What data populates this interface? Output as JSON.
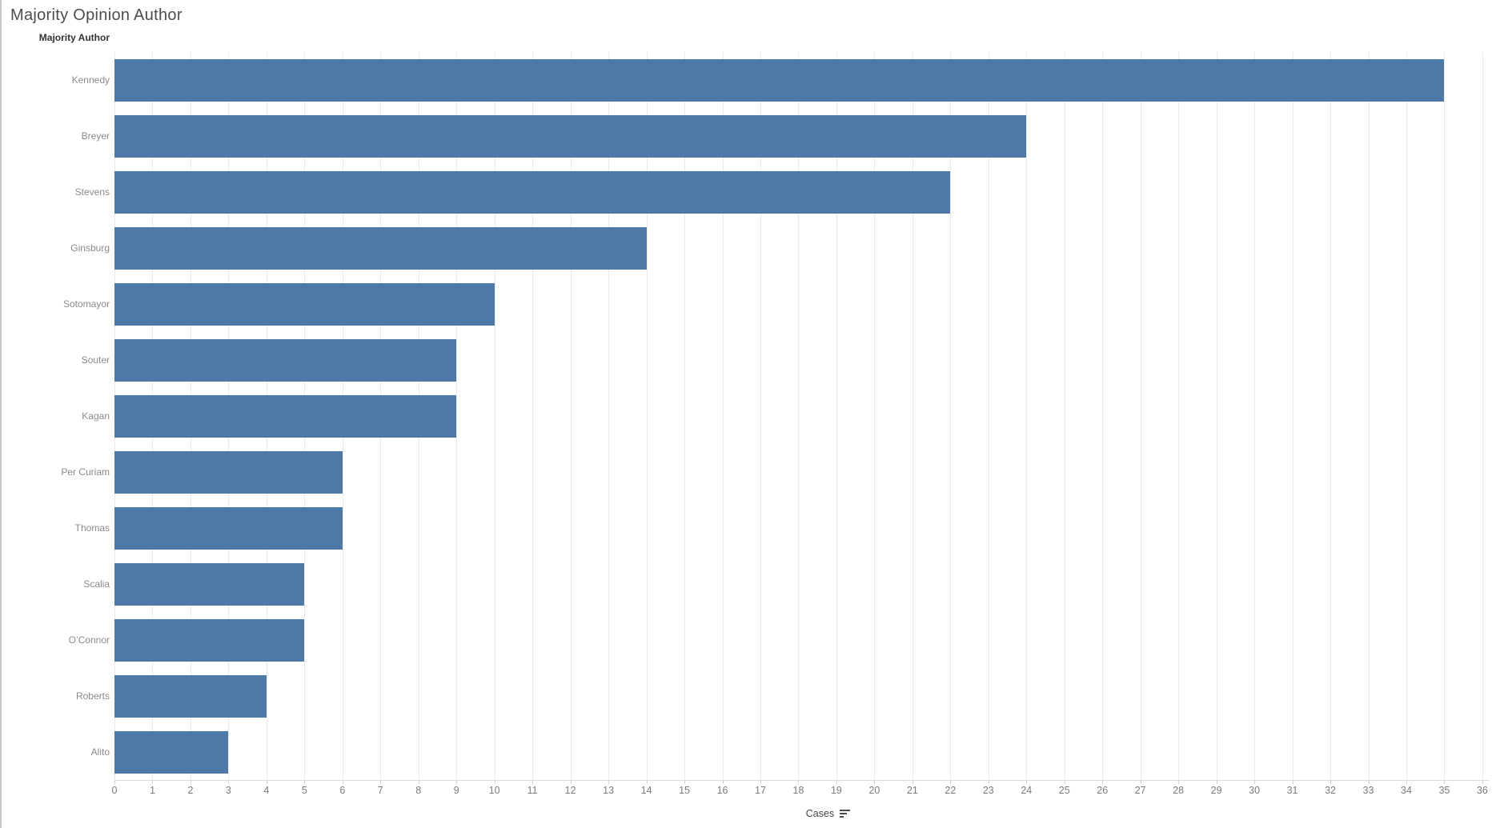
{
  "title": "Majority Opinion Author",
  "row_header": "Majority Author",
  "x_axis": {
    "label": "Cases",
    "sort_icon": "sort-descending-icon",
    "ticks": [
      0,
      1,
      2,
      3,
      4,
      5,
      6,
      7,
      8,
      9,
      10,
      11,
      12,
      13,
      14,
      15,
      16,
      17,
      18,
      19,
      20,
      21,
      22,
      23,
      24,
      25,
      26,
      27,
      28,
      29,
      30,
      31,
      32,
      33,
      34,
      35,
      36
    ]
  },
  "colors": {
    "bar": "#4E79A7",
    "gridline": "#e9e9e9",
    "axis_line": "#d9d9d9",
    "title_text": "#4c4c4c",
    "row_label_text": "#8a8a8a",
    "tick_text": "#7b7b7b",
    "header_text": "#333333"
  },
  "chart_data": {
    "type": "bar",
    "orientation": "horizontal",
    "title": "Majority Opinion Author",
    "categories": [
      "Kennedy",
      "Breyer",
      "Stevens",
      "Ginsburg",
      "Sotomayor",
      "Souter",
      "Kagan",
      "Per Curiam",
      "Thomas",
      "Scalia",
      "O’Connor",
      "Roberts",
      "Alito"
    ],
    "values": [
      35,
      24,
      22,
      14,
      10,
      9,
      9,
      6,
      6,
      5,
      5,
      4,
      3
    ],
    "xlabel": "Cases",
    "ylabel": "Majority Author",
    "xlim": [
      0,
      36
    ],
    "grid": true,
    "legend": "none",
    "sort": "descending",
    "bar_color": "#4E79A7"
  }
}
